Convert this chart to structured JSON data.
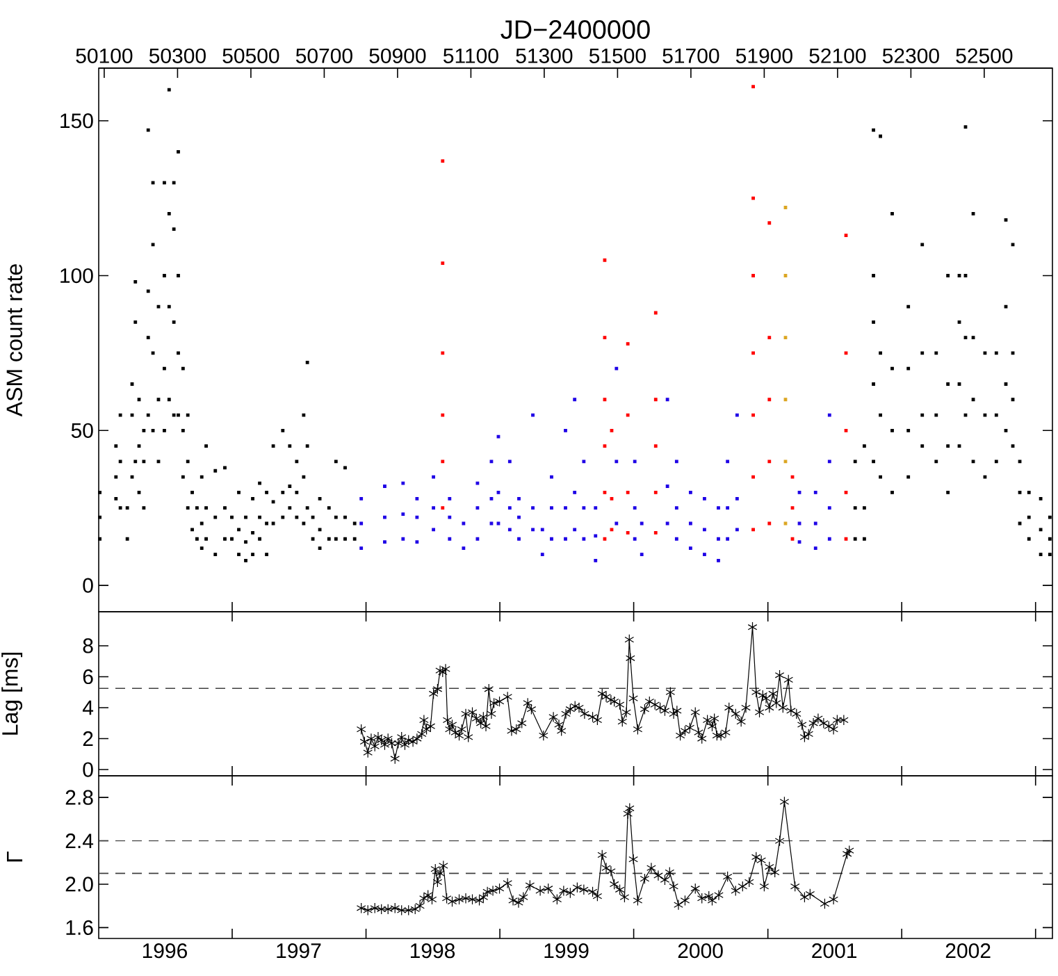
{
  "chart_data": [
    {
      "type": "scatter",
      "x2label": "JD−2400000",
      "ylabel": "ASM count rate",
      "marker": "square",
      "tick_labels": "y",
      "xlim": [
        "1996-01-03",
        "2003-02-16"
      ],
      "ylim": [
        -8.5,
        167
      ],
      "yticks": [
        0,
        50,
        100,
        150
      ],
      "x2lim": [
        50085,
        52686
      ],
      "x2ticks": [
        50100,
        50300,
        50500,
        50700,
        50900,
        51100,
        51300,
        51500,
        51700,
        51900,
        52100,
        52300,
        52500
      ],
      "xticks": [
        {
          "value": "1997-01-01",
          "label": null
        },
        {
          "value": "1998-01-01",
          "label": null
        },
        {
          "value": "1999-01-01",
          "label": null
        },
        {
          "value": "2000-01-01",
          "label": null
        },
        {
          "value": "2001-01-01",
          "label": null
        },
        {
          "value": "2002-01-01",
          "label": null
        },
        {
          "value": "2003-01-01",
          "label": null
        }
      ],
      "series": [
        {
          "color": "#000000",
          "x": [
            "1996-01-06",
            "1996-01-06",
            "1996-01-06",
            "1996-02-19",
            "1996-02-19",
            "1996-02-19",
            "1996-03-02",
            "1996-03-02",
            "1996-03-02",
            "1996-03-21",
            "1996-03-21",
            "1996-04-03",
            "1996-04-03",
            "1996-04-03",
            "1996-04-12",
            "1996-04-12",
            "1996-04-12",
            "1996-04-22",
            "1996-04-22",
            "1996-04-22",
            "1996-05-05",
            "1996-05-05",
            "1996-05-05",
            "1996-05-17",
            "1996-05-17",
            "1996-05-17",
            "1996-05-17",
            "1996-05-30",
            "1996-05-30",
            "1996-05-30",
            "1996-05-30",
            "1996-06-14",
            "1996-06-14",
            "1996-06-14",
            "1996-06-30",
            "1996-06-30",
            "1996-06-30",
            "1996-06-30",
            "1996-07-13",
            "1996-07-13",
            "1996-07-13",
            "1996-07-13",
            "1996-07-26",
            "1996-07-26",
            "1996-07-26",
            "1996-07-26",
            "1996-08-07",
            "1996-08-07",
            "1996-08-07",
            "1996-08-07",
            "1996-08-20",
            "1996-08-20",
            "1996-08-20",
            "1996-09-02",
            "1996-09-02",
            "1996-09-02",
            "1996-09-14",
            "1996-09-14",
            "1996-09-27",
            "1996-09-27",
            "1996-10-10",
            "1996-10-10",
            "1996-10-10",
            "1996-10-22",
            "1996-10-22",
            "1996-10-22",
            "1996-11-16",
            "1996-11-16",
            "1996-11-16",
            "1996-12-12",
            "1996-12-12",
            "1996-12-12",
            "1996-12-31",
            "1996-12-31",
            "1997-01-19",
            "1997-01-19",
            "1997-01-19",
            "1997-02-07",
            "1997-02-07",
            "1997-02-07",
            "1997-02-26",
            "1997-02-26",
            "1997-02-26",
            "1997-03-17",
            "1997-03-17",
            "1997-03-17",
            "1997-04-05",
            "1997-04-05",
            "1997-04-05",
            "1997-04-23",
            "1997-04-23",
            "1997-04-23",
            "1997-05-19",
            "1997-05-19",
            "1997-05-19",
            "1997-06-07",
            "1997-06-07",
            "1997-06-07",
            "1997-06-26",
            "1997-06-26",
            "1997-06-26",
            "1997-07-15",
            "1997-07-15",
            "1997-07-15",
            "1997-07-25",
            "1997-07-25",
            "1997-07-25",
            "1997-08-09",
            "1997-08-09",
            "1997-08-28",
            "1997-08-28",
            "1997-08-28",
            "1997-09-22",
            "1997-09-22",
            "1997-10-11",
            "1997-10-11",
            "1997-10-11",
            "1997-11-05",
            "1997-11-05",
            "1997-11-05",
            "1997-12-01",
            "1997-12-01",
            "2001-08-27",
            "2001-08-27",
            "2001-08-27",
            "2001-09-21",
            "2001-09-21",
            "2001-09-21",
            "2001-10-16",
            "2001-10-16",
            "2001-10-16",
            "2001-10-16",
            "2001-10-16",
            "2001-11-04",
            "2001-11-04",
            "2001-11-04",
            "2001-11-04",
            "2001-12-06",
            "2001-12-06",
            "2001-12-06",
            "2001-12-06",
            "2002-01-19",
            "2002-01-19",
            "2002-01-19",
            "2002-01-19",
            "2002-02-26",
            "2002-02-26",
            "2002-02-26",
            "2002-02-26",
            "2002-04-05",
            "2002-04-05",
            "2002-04-05",
            "2002-05-07",
            "2002-05-07",
            "2002-05-07",
            "2002-05-07",
            "2002-06-07",
            "2002-06-07",
            "2002-06-07",
            "2002-06-07",
            "2002-06-24",
            "2002-06-24",
            "2002-06-24",
            "2002-06-24",
            "2002-07-15",
            "2002-07-15",
            "2002-07-15",
            "2002-07-15",
            "2002-08-16",
            "2002-08-16",
            "2002-08-16",
            "2002-09-16",
            "2002-09-16",
            "2002-09-16",
            "2002-10-12",
            "2002-10-12",
            "2002-10-12",
            "2002-10-12",
            "2002-10-31",
            "2002-10-31",
            "2002-10-31",
            "2002-10-31",
            "2002-11-19",
            "2002-11-19",
            "2002-11-19",
            "2002-12-14",
            "2002-12-14",
            "2002-12-14",
            "2003-01-15",
            "2003-01-15",
            "2003-01-15",
            "2003-02-09",
            "2003-02-09",
            "2003-02-09"
          ],
          "values": [
            15,
            22,
            30,
            28,
            35,
            45,
            25,
            40,
            55,
            15,
            25,
            35,
            55,
            65,
            40,
            85,
            98,
            30,
            45,
            60,
            25,
            40,
            50,
            55,
            80,
            95,
            147,
            50,
            75,
            110,
            130,
            40,
            60,
            90,
            50,
            70,
            100,
            130,
            60,
            90,
            120,
            160,
            55,
            85,
            115,
            130,
            55,
            75,
            100,
            140,
            35,
            50,
            70,
            25,
            40,
            55,
            18,
            30,
            15,
            25,
            12,
            20,
            35,
            15,
            25,
            45,
            10,
            22,
            37,
            15,
            25,
            38,
            15,
            22,
            10,
            18,
            30,
            8,
            14,
            22,
            10,
            17,
            28,
            15,
            22,
            33,
            10,
            20,
            30,
            20,
            27,
            45,
            22,
            30,
            50,
            25,
            32,
            45,
            22,
            30,
            40,
            20,
            35,
            55,
            25,
            45,
            72,
            15,
            22,
            12,
            18,
            28,
            15,
            25,
            15,
            22,
            40,
            15,
            22,
            38,
            15,
            20,
            15,
            25,
            40,
            15,
            25,
            45,
            40,
            65,
            85,
            100,
            147,
            35,
            55,
            75,
            145,
            30,
            50,
            70,
            120,
            35,
            50,
            70,
            90,
            45,
            55,
            75,
            110,
            40,
            55,
            75,
            30,
            45,
            65,
            100,
            45,
            65,
            85,
            100,
            55,
            80,
            100,
            148,
            40,
            60,
            80,
            120,
            35,
            55,
            75,
            40,
            55,
            75,
            50,
            65,
            90,
            118,
            45,
            60,
            75,
            110,
            20,
            30,
            40,
            15,
            22,
            30,
            10,
            18,
            28,
            10,
            15,
            22
          ]
        },
        {
          "color": "#1e00e6",
          "x": [
            "1997-12-19",
            "1997-12-19",
            "1997-12-19",
            "1998-02-21",
            "1998-02-21",
            "1998-02-21",
            "1998-04-12",
            "1998-04-12",
            "1998-04-12",
            "1998-05-20",
            "1998-05-20",
            "1998-05-20",
            "1998-07-04",
            "1998-07-04",
            "1998-07-04",
            "1998-08-17",
            "1998-08-17",
            "1998-08-17",
            "1998-09-24",
            "1998-09-24",
            "1998-11-01",
            "1998-11-01",
            "1998-11-01",
            "1998-12-09",
            "1998-12-09",
            "1998-12-09",
            "1998-12-28",
            "1998-12-28",
            "1998-12-28",
            "1999-01-28",
            "1999-01-28",
            "1999-01-28",
            "1999-02-22",
            "1999-02-22",
            "1999-02-22",
            "1999-04-01",
            "1999-04-01",
            "1999-04-01",
            "1999-04-27",
            "1999-04-27",
            "1999-05-22",
            "1999-05-22",
            "1999-05-22",
            "1999-06-29",
            "1999-06-29",
            "1999-06-29",
            "1999-07-24",
            "1999-07-24",
            "1999-07-24",
            "1999-08-18",
            "1999-08-18",
            "1999-08-18",
            "1999-09-19",
            "1999-09-19",
            "1999-09-19",
            "1999-11-15",
            "1999-11-15",
            "1999-11-15",
            "2000-01-04",
            "2000-01-04",
            "2000-01-04",
            "2000-01-23",
            "2000-01-23",
            "2000-04-02",
            "2000-04-02",
            "2000-04-02",
            "2000-04-27",
            "2000-04-27",
            "2000-04-27",
            "2000-06-04",
            "2000-06-04",
            "2000-06-04",
            "2000-07-12",
            "2000-07-12",
            "2000-07-12",
            "2000-08-19",
            "2000-08-19",
            "2000-08-19",
            "2000-09-13",
            "2000-09-13",
            "2000-09-13",
            "2000-10-09",
            "2000-10-09",
            "2000-10-09",
            "2001-03-28",
            "2001-03-28",
            "2001-03-28",
            "2001-05-11",
            "2001-05-11",
            "2001-05-11",
            "2001-06-18",
            "2001-06-18",
            "2001-06-18",
            "2001-06-18"
          ],
          "values": [
            12,
            20,
            28,
            14,
            22,
            32,
            15,
            23,
            33,
            14,
            22,
            28,
            18,
            25,
            35,
            15,
            22,
            28,
            12,
            20,
            15,
            25,
            33,
            20,
            28,
            40,
            20,
            30,
            48,
            18,
            25,
            40,
            15,
            22,
            28,
            18,
            25,
            55,
            10,
            18,
            15,
            25,
            35,
            15,
            25,
            50,
            18,
            30,
            60,
            15,
            25,
            40,
            8,
            16,
            25,
            20,
            40,
            70,
            15,
            25,
            40,
            10,
            20,
            20,
            32,
            60,
            15,
            25,
            40,
            12,
            20,
            30,
            10,
            18,
            28,
            8,
            15,
            25,
            15,
            25,
            40,
            18,
            28,
            55,
            14,
            20,
            30,
            12,
            20,
            30,
            15,
            25,
            40,
            55
          ]
        },
        {
          "color": "#ff0000",
          "x": [
            "1998-07-29",
            "1998-07-29",
            "1998-07-29",
            "1998-07-29",
            "1998-07-29",
            "1998-07-29",
            "1999-10-14",
            "1999-10-14",
            "1999-10-14",
            "1999-10-14",
            "1999-10-14",
            "1999-10-14",
            "1999-11-02",
            "1999-11-02",
            "1999-11-02",
            "1999-12-16",
            "1999-12-16",
            "1999-12-16",
            "1999-12-16",
            "2000-03-01",
            "2000-03-01",
            "2000-03-01",
            "2000-03-01",
            "2000-03-01",
            "2000-11-22",
            "2000-11-22",
            "2000-11-22",
            "2000-11-22",
            "2000-11-22",
            "2000-11-22",
            "2000-11-22",
            "2001-01-05",
            "2001-01-05",
            "2001-01-05",
            "2001-01-05",
            "2001-01-05",
            "2001-03-09",
            "2001-03-09",
            "2001-03-09",
            "2001-08-02",
            "2001-08-02",
            "2001-08-02",
            "2001-08-02",
            "2001-08-02"
          ],
          "values": [
            25,
            40,
            55,
            75,
            104,
            137,
            15,
            30,
            45,
            60,
            80,
            105,
            18,
            28,
            50,
            17,
            30,
            55,
            78,
            17,
            30,
            45,
            60,
            88,
            18,
            35,
            55,
            75,
            100,
            125,
            161,
            20,
            40,
            60,
            80,
            117,
            15,
            25,
            35,
            15,
            30,
            50,
            75,
            113
          ]
        },
        {
          "color": "#dba520",
          "x": [
            "2001-02-18",
            "2001-02-18",
            "2001-02-18",
            "2001-02-18",
            "2001-02-18",
            "2001-02-18"
          ],
          "values": [
            20,
            40,
            60,
            80,
            100,
            122
          ]
        }
      ]
    },
    {
      "type": "line",
      "ylabel": "Lag [ms]",
      "marker": "cross",
      "line_style": "solid",
      "tick_labels": "y",
      "xlim": [
        "1996-01-03",
        "2003-02-16"
      ],
      "ylim": [
        -0.4,
        10.2
      ],
      "yticks": [
        0,
        2,
        4,
        6,
        8
      ],
      "xticks": [
        {
          "value": "1997-01-01",
          "label": null
        },
        {
          "value": "1998-01-01",
          "label": null
        },
        {
          "value": "1999-01-01",
          "label": null
        },
        {
          "value": "2000-01-01",
          "label": null
        },
        {
          "value": "2001-01-01",
          "label": null
        },
        {
          "value": "2002-01-01",
          "label": null
        },
        {
          "value": "2003-01-01",
          "label": null
        }
      ],
      "ref_lines": [
        {
          "axis": "y",
          "value": 5.25,
          "color": "#404040",
          "line_style": "dashed"
        }
      ],
      "series": [
        {
          "color": "#000000",
          "x": [
            "1997-12-19",
            "1997-12-28",
            "1998-01-06",
            "1998-01-15",
            "1998-01-25",
            "1998-02-03",
            "1998-02-12",
            "1998-02-21",
            "1998-03-02",
            "1998-03-12",
            "1998-03-21",
            "1998-03-30",
            "1998-04-08",
            "1998-04-17",
            "1998-04-27",
            "1998-05-09",
            "1998-05-20",
            "1998-06-02",
            "1998-06-08",
            "1998-06-15",
            "1998-06-26",
            "1998-07-04",
            "1998-07-15",
            "1998-07-22",
            "1998-07-29",
            "1998-08-06",
            "1998-08-11",
            "1998-08-17",
            "1998-08-24",
            "1998-09-02",
            "1998-09-12",
            "1998-09-19",
            "1998-09-30",
            "1998-10-07",
            "1998-10-18",
            "1998-10-29",
            "1998-11-10",
            "1998-11-17",
            "1998-11-24",
            "1998-12-02",
            "1998-12-09",
            "1998-12-16",
            "1998-12-31",
            "1999-01-22",
            "1999-02-02",
            "1999-02-15",
            "1999-03-02",
            "1999-03-18",
            "1999-03-28",
            "1999-04-30",
            "1999-05-27",
            "1999-06-11",
            "1999-06-18",
            "1999-06-30",
            "1999-07-12",
            "1999-07-25",
            "1999-08-05",
            "1999-08-20",
            "1999-09-11",
            "1999-09-24",
            "1999-10-07",
            "1999-10-18",
            "1999-10-31",
            "1999-11-09",
            "1999-11-24",
            "1999-12-01",
            "1999-12-12",
            "1999-12-20",
            "1999-12-23",
            "1999-12-31",
            "2000-01-12",
            "2000-01-31",
            "2000-02-13",
            "2000-02-28",
            "2000-03-13",
            "2000-03-26",
            "2000-04-10",
            "2000-04-19",
            "2000-04-28",
            "2000-05-07",
            "2000-05-20",
            "2000-06-02",
            "2000-06-17",
            "2000-06-26",
            "2000-07-05",
            "2000-07-20",
            "2000-08-02",
            "2000-08-08",
            "2000-08-15",
            "2000-08-26",
            "2000-09-08",
            "2000-09-17",
            "2000-10-05",
            "2000-10-20",
            "2000-11-02",
            "2000-11-20",
            "2000-11-30",
            "2000-12-09",
            "2000-12-18",
            "2000-12-27",
            "2001-01-05",
            "2001-01-15",
            "2001-01-24",
            "2001-02-02",
            "2001-02-11",
            "2001-02-26",
            "2001-03-05",
            "2001-03-20",
            "2001-04-04",
            "2001-04-11",
            "2001-04-22",
            "2001-05-05",
            "2001-05-18",
            "2001-06-02",
            "2001-06-16",
            "2001-06-29",
            "2001-07-09",
            "2001-07-27"
          ],
          "values": [
            2.6,
            1.8,
            1.1,
            2.0,
            1.5,
            2.1,
            1.9,
            1.6,
            2.0,
            1.7,
            0.7,
            1.7,
            2.1,
            1.6,
            1.9,
            1.8,
            2.0,
            2.3,
            3.2,
            2.6,
            2.8,
            4.9,
            5.2,
            6.4,
            6.3,
            6.5,
            3.2,
            2.6,
            2.9,
            2.4,
            2.2,
            2.6,
            3.6,
            2.1,
            3.7,
            3.3,
            3.0,
            3.4,
            2.8,
            5.2,
            3.6,
            4.3,
            4.4,
            4.7,
            2.5,
            2.6,
            3.0,
            4.3,
            3.9,
            2.2,
            3.4,
            2.9,
            2.5,
            3.6,
            3.9,
            4.1,
            4.0,
            3.6,
            3.4,
            3.2,
            4.9,
            4.7,
            4.5,
            4.4,
            4.2,
            3.1,
            3.7,
            8.4,
            7.2,
            4.6,
            2.6,
            3.9,
            4.4,
            4.2,
            4.0,
            3.8,
            5.0,
            3.6,
            3.8,
            2.2,
            2.5,
            2.7,
            3.7,
            2.4,
            2.0,
            3.2,
            2.8,
            3.3,
            2.2,
            2.2,
            2.4,
            4.0,
            3.6,
            3.1,
            4.0,
            9.2,
            5.0,
            3.7,
            4.8,
            4.6,
            4.0,
            4.9,
            4.3,
            6.1,
            4.0,
            5.8,
            3.8,
            3.6,
            2.9,
            2.1,
            2.3,
            3.0,
            3.3,
            3.0,
            2.8,
            2.6,
            3.2,
            3.2
          ]
        }
      ]
    },
    {
      "type": "line",
      "ylabel": "Γ",
      "marker": "cross",
      "line_style": "solid",
      "xlim": [
        "1996-01-03",
        "2003-02-16"
      ],
      "ylim": [
        1.5,
        3.0
      ],
      "yticks": [
        1.6,
        {
          "value": 2,
          "label": "2.0"
        },
        2.4,
        2.8
      ],
      "xticks": [
        {
          "value": "1997-01-01",
          "label": null
        },
        {
          "value": "1998-01-01",
          "label": null
        },
        {
          "value": "1999-01-01",
          "label": null
        },
        {
          "value": "2000-01-01",
          "label": null
        },
        {
          "value": "2001-01-01",
          "label": null
        },
        {
          "value": "2002-01-01",
          "label": null
        },
        {
          "value": "2003-01-01",
          "label": null
        },
        {
          "value": "1996-07-01",
          "label": "1996"
        },
        {
          "value": "1997-07-01",
          "label": "1997"
        },
        {
          "value": "1998-07-01",
          "label": "1998"
        },
        {
          "value": "1999-07-01",
          "label": "1999"
        },
        {
          "value": "2000-07-01",
          "label": "2000"
        },
        {
          "value": "2001-07-01",
          "label": "2001"
        },
        {
          "value": "2002-07-01",
          "label": "2002"
        }
      ],
      "ref_lines": [
        {
          "axis": "y",
          "value": 2.4,
          "color": "#404040",
          "line_style": "dashed"
        },
        {
          "axis": "y",
          "value": 2.1,
          "color": "#404040",
          "line_style": "dashed"
        }
      ],
      "series": [
        {
          "color": "#000000",
          "x": [
            "1997-12-19",
            "1998-01-06",
            "1998-01-25",
            "1998-02-12",
            "1998-03-02",
            "1998-03-21",
            "1998-04-08",
            "1998-04-27",
            "1998-05-15",
            "1998-05-28",
            "1998-06-08",
            "1998-06-19",
            "1998-06-30",
            "1998-07-09",
            "1998-07-15",
            "1998-07-22",
            "1998-07-31",
            "1998-08-09",
            "1998-08-24",
            "1998-09-12",
            "1998-09-30",
            "1998-10-18",
            "1998-11-06",
            "1998-11-17",
            "1998-11-28",
            "1998-12-13",
            "1998-12-31",
            "1999-01-22",
            "1999-02-06",
            "1999-02-21",
            "1999-03-06",
            "1999-03-24",
            "1999-04-21",
            "1999-05-13",
            "1999-06-06",
            "1999-06-24",
            "1999-07-12",
            "1999-07-31",
            "1999-08-18",
            "1999-09-11",
            "1999-09-24",
            "1999-10-07",
            "1999-10-18",
            "1999-10-31",
            "1999-11-09",
            "1999-11-24",
            "1999-12-07",
            "1999-12-16",
            "1999-12-21",
            "1999-12-31",
            "2000-01-12",
            "2000-01-31",
            "2000-02-18",
            "2000-03-08",
            "2000-03-26",
            "2000-04-08",
            "2000-04-19",
            "2000-05-02",
            "2000-05-20",
            "2000-06-17",
            "2000-07-05",
            "2000-07-24",
            "2000-08-02",
            "2000-08-20",
            "2000-09-13",
            "2000-10-05",
            "2000-10-24",
            "2000-11-11",
            "2000-11-30",
            "2000-12-14",
            "2000-12-22",
            "2001-01-05",
            "2001-01-20",
            "2001-02-02",
            "2001-02-15",
            "2001-03-16",
            "2001-04-11",
            "2001-04-26",
            "2001-06-05",
            "2001-06-29",
            "2001-08-05",
            "2001-08-11"
          ],
          "values": [
            1.78,
            1.76,
            1.78,
            1.77,
            1.77,
            1.78,
            1.76,
            1.76,
            1.77,
            1.8,
            1.87,
            1.9,
            1.86,
            2.14,
            2.02,
            2.1,
            2.17,
            1.87,
            1.84,
            1.86,
            1.87,
            1.86,
            1.85,
            1.88,
            1.93,
            1.94,
            1.96,
            2.01,
            1.85,
            1.83,
            1.88,
            1.99,
            1.94,
            1.96,
            1.86,
            1.94,
            1.92,
            1.97,
            1.95,
            1.93,
            1.89,
            2.27,
            2.15,
            2.12,
            2.0,
            1.95,
            1.88,
            2.65,
            2.7,
            2.23,
            1.85,
            2.05,
            2.15,
            2.08,
            2.04,
            2.11,
            1.98,
            1.81,
            1.85,
            1.96,
            1.87,
            1.89,
            1.85,
            1.9,
            2.07,
            1.94,
            1.98,
            2.02,
            2.25,
            2.22,
            1.98,
            2.16,
            2.11,
            2.4,
            2.76,
            1.98,
            1.88,
            1.91,
            1.82,
            1.86,
            2.28,
            2.31
          ]
        }
      ]
    }
  ]
}
